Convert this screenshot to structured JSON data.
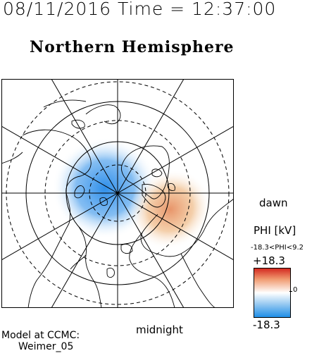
{
  "header": {
    "datetime": "08/11/2016 Time = 12:37:00",
    "title": "Northern Hemisphere"
  },
  "map": {
    "projection": "polar-stereographic",
    "latitude_circles_deg": [
      80,
      70,
      60,
      50
    ],
    "meridian_spacing_deg": 30,
    "potential_regions": [
      {
        "kind": "negative-cell",
        "color": "#2f8fea",
        "location": "pole / evening side"
      },
      {
        "kind": "positive-cell",
        "color": "#e8956a",
        "location": "morning side"
      }
    ]
  },
  "labels": {
    "dawn": "dawn",
    "midnight": "midnight"
  },
  "colorbar": {
    "title": "PHI [kV]",
    "range_text": "-18.3<PHI<9.2",
    "max_label": "+18.3",
    "min_label": "-18.3",
    "zero_label": "0",
    "colors": {
      "top": "#d42a20",
      "mid": "#ffffff",
      "bottom": "#1f8fe8"
    }
  },
  "footer": {
    "model_line1": "Model at CCMC:",
    "model_line2": "Weimer_05"
  }
}
